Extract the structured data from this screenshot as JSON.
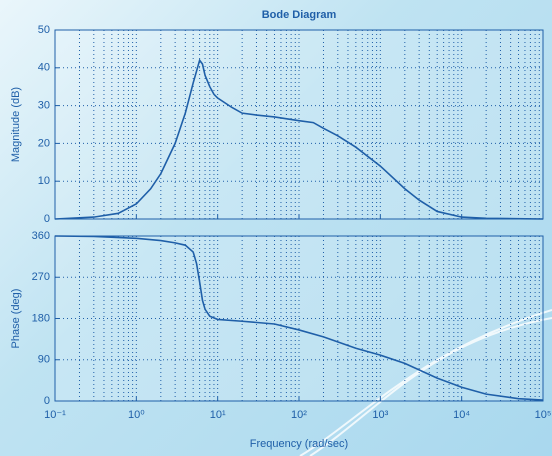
{
  "chart_data": [
    {
      "type": "line",
      "title": "Bode Diagram",
      "ylabel": "Magnitude (dB)",
      "xscale": "log",
      "grid": true,
      "minor_grid": true,
      "xlim": [
        0.1,
        100000
      ],
      "xticks": [
        0.1,
        1,
        10,
        100,
        1000,
        10000,
        100000
      ],
      "ylim": [
        0,
        50
      ],
      "yticks": [
        0,
        10,
        20,
        30,
        40,
        50
      ],
      "series": [
        {
          "color": "#1f5fa8",
          "x": [
            0.1,
            0.3,
            0.6,
            1,
            1.5,
            2,
            3,
            4,
            5,
            6,
            6.5,
            7,
            8,
            9,
            10,
            15,
            20,
            30,
            50,
            100,
            150,
            200,
            300,
            500,
            1000,
            2000,
            3000,
            5000,
            10000,
            20000,
            100000
          ],
          "values": [
            0,
            0.5,
            1.5,
            4,
            8,
            12,
            20,
            28,
            36,
            42,
            41,
            38,
            35,
            33,
            32,
            29.5,
            28,
            27.5,
            27,
            26,
            25.5,
            24,
            22,
            19,
            14,
            8,
            5,
            2,
            0.5,
            0.2,
            0
          ]
        }
      ]
    },
    {
      "type": "line",
      "ylabel": "Phase (deg)",
      "xlabel": "Frequency (rad/sec)",
      "xscale": "log",
      "grid": true,
      "minor_grid": true,
      "xlim": [
        0.1,
        100000
      ],
      "xticks": [
        {
          "value": 0.1,
          "label": "10⁻¹"
        },
        {
          "value": 1,
          "label": "10⁰"
        },
        {
          "value": 10,
          "label": "10¹"
        },
        {
          "value": 100,
          "label": "10²"
        },
        {
          "value": 1000,
          "label": "10³"
        },
        {
          "value": 10000,
          "label": "10⁴"
        },
        {
          "value": 100000,
          "label": "10⁵"
        }
      ],
      "ylim": [
        0,
        360
      ],
      "yticks": [
        0,
        90,
        180,
        270,
        360
      ],
      "series": [
        {
          "color": "#1f5fa8",
          "x": [
            0.1,
            0.3,
            1,
            2,
            3,
            4,
            5,
            5.5,
            6,
            6.5,
            7,
            8,
            10,
            20,
            50,
            100,
            200,
            500,
            1000,
            2000,
            5000,
            10000,
            20000,
            50000,
            100000
          ],
          "values": [
            360,
            359,
            355,
            350,
            345,
            340,
            325,
            300,
            260,
            220,
            200,
            185,
            178,
            174,
            168,
            155,
            140,
            115,
            100,
            82,
            50,
            30,
            15,
            5,
            2
          ]
        }
      ]
    }
  ]
}
